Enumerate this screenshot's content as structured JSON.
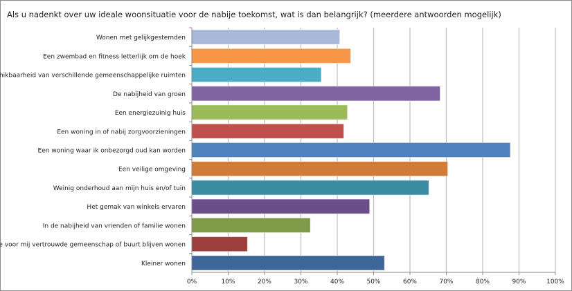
{
  "chart_data": {
    "type": "bar",
    "orientation": "horizontal",
    "title": "Als u nadenkt over uw ideale woonsituatie voor de nabije toekomst, wat is dan belangrijk? (meerdere antwoorden mogelijk)",
    "xlabel": "",
    "ylabel": "",
    "xlim": [
      0,
      100
    ],
    "x_tick_labels": [
      "0%",
      "10%",
      "20%",
      "30%",
      "40%",
      "50%",
      "60%",
      "70%",
      "80%",
      "90%",
      "100%"
    ],
    "grid": true,
    "categories": [
      "Wonen met gelijkgestemden",
      "Een zwembad en fitness letterlijk om de hoek",
      "Beschikbaarheid van verschillende gemeenschappelijke ruimten",
      "De nabijheid van groen",
      "Een energiezuinig huis",
      "Een woning in of nabij zorgvoorzieningen",
      "Een woning waar ik onbezorgd oud kan worden",
      "Een veilige omgeving",
      "Weinig onderhoud aan mijn huis en/of tuin",
      "Het gemak van winkels ervaren",
      "In de nabijheid van vrienden of familie wonen",
      "In de voor mij vertrouwde gemeenschap of buurt blijven wonen",
      "Kleiner wonen"
    ],
    "values": [
      40.7,
      43.7,
      35.6,
      68.3,
      42.8,
      41.8,
      87.6,
      70.4,
      65.2,
      48.9,
      32.6,
      15.3,
      53.0
    ],
    "colors": [
      "#a9b9d9",
      "#f79646",
      "#4bacc6",
      "#8064a2",
      "#9bbb59",
      "#c0504d",
      "#4f81bd",
      "#d07b38",
      "#3b8ca3",
      "#694f8a",
      "#7f9a48",
      "#9c3f3c",
      "#3e6699"
    ]
  }
}
